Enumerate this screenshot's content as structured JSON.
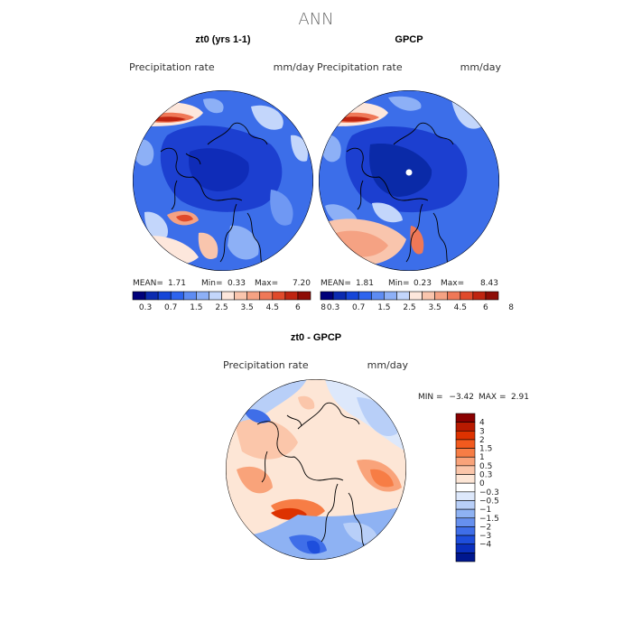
{
  "title": "ANN",
  "colors": {
    "abs_scale": [
      "#00007a",
      "#0b2bb0",
      "#1546d8",
      "#2d64ee",
      "#5e8cf2",
      "#8db0f6",
      "#c3d6fb",
      "#fde7dc",
      "#f9c5ad",
      "#f5a283",
      "#ef7857",
      "#e04a2b",
      "#bf2410",
      "#8e0c05"
    ],
    "diff_scale": [
      "#8a0000",
      "#b81a00",
      "#dd3200",
      "#f25a1e",
      "#f77d45",
      "#f9a37a",
      "#fbc6aa",
      "#fde6d6",
      "#ffffff",
      "#dde8fb",
      "#b8cff8",
      "#8eb2f3",
      "#6690ee",
      "#3f6ee8",
      "#1e4edc",
      "#0a2fbd",
      "#00178f"
    ],
    "ocean_blue": "#2f5fe6",
    "land_blue": "#1c3fd0"
  },
  "chart_data": [
    {
      "type": "heatmap",
      "projection": "polar-stereographic",
      "title": "zt0 (yrs 1-1)",
      "field_label": "Precipitation rate",
      "units": "mm/day",
      "stats": {
        "mean_label": "MEAN=",
        "mean": "1.71",
        "min_label": "Min=",
        "min": "0.33",
        "max_label": "Max=",
        "max": "7.20"
      },
      "colorbar_ticks": [
        "0.3",
        "0.7",
        "1.5",
        "2.5",
        "3.5",
        "4.5",
        "6",
        "8"
      ]
    },
    {
      "type": "heatmap",
      "projection": "polar-stereographic",
      "title": "GPCP",
      "field_label": "Precipitation rate",
      "units": "mm/day",
      "stats": {
        "mean_label": "MEAN=",
        "mean": "1.81",
        "min_label": "Min=",
        "min": "0.23",
        "max_label": "Max=",
        "max": "8.43"
      },
      "colorbar_ticks": [
        "0.3",
        "0.7",
        "1.5",
        "2.5",
        "3.5",
        "4.5",
        "6",
        "8"
      ]
    },
    {
      "type": "heatmap",
      "projection": "polar-stereographic",
      "title": "zt0 - GPCP",
      "field_label": "Precipitation rate",
      "units": "mm/day",
      "stats": {
        "min_label": "MIN =",
        "min": "−3.42",
        "max_label": "MAX =",
        "max": "2.91"
      },
      "colorbar_ticks": [
        "4",
        "3",
        "2",
        "1.5",
        "1",
        "0.5",
        "0.3",
        "0",
        "−0.3",
        "−0.5",
        "−1",
        "−1.5",
        "−2",
        "−3",
        "−4"
      ]
    }
  ]
}
